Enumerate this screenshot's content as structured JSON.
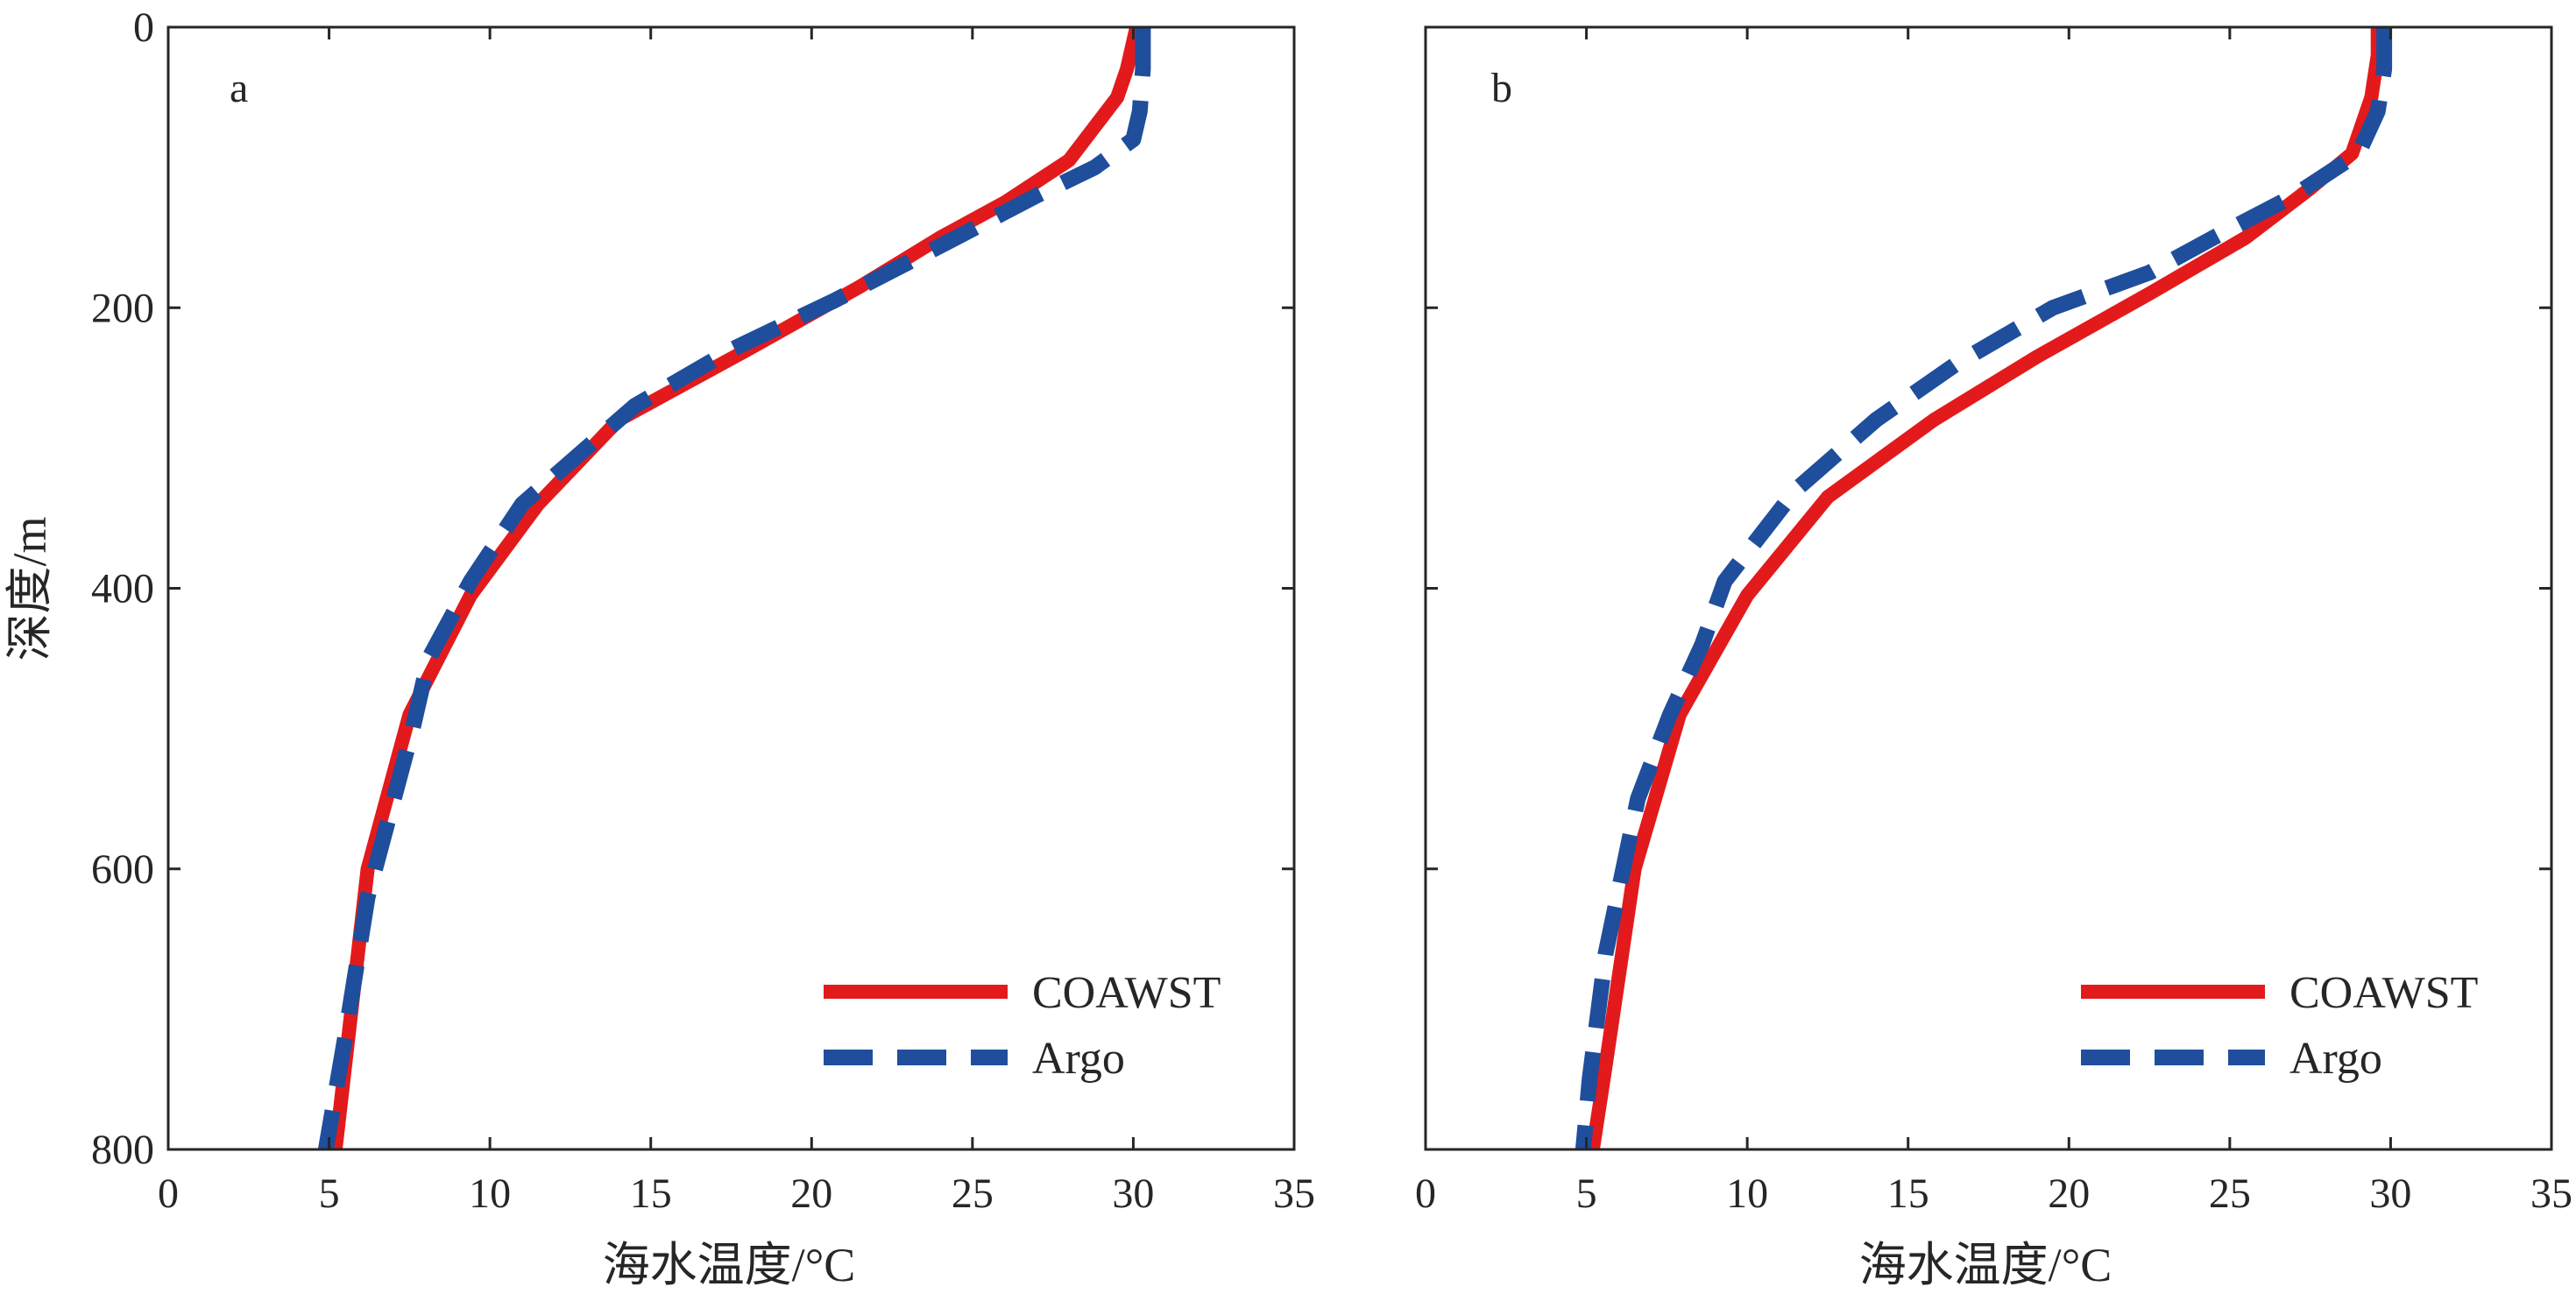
{
  "chart_data": [
    {
      "type": "line",
      "panel_label": "a",
      "xlabel": "海水温度/°C",
      "ylabel": "深度/m",
      "xlim": [
        0,
        35
      ],
      "ylim": [
        800,
        0
      ],
      "y_reversed": true,
      "xticks": [
        0,
        5,
        10,
        15,
        20,
        25,
        30,
        35
      ],
      "yticks": [
        0,
        200,
        400,
        600,
        800
      ],
      "legend_position": "bottom-right",
      "series": [
        {
          "name": "COAWST",
          "color": "#e31a1c",
          "style": "solid",
          "x": [
            30.1,
            29.8,
            29.5,
            28.0,
            26.0,
            24.0,
            21.5,
            18.0,
            14.0,
            11.5,
            9.4,
            7.5,
            6.2,
            5.2
          ],
          "y": [
            0,
            30,
            50,
            95,
            125,
            150,
            185,
            230,
            280,
            340,
            405,
            490,
            600,
            800
          ]
        },
        {
          "name": "Argo",
          "color": "#1f4e9c",
          "style": "dashed",
          "x": [
            30.3,
            30.3,
            30.2,
            30.0,
            28.8,
            27.0,
            24.5,
            20.7,
            17.5,
            14.5,
            11.0,
            9.4,
            8.1,
            7.6,
            6.9,
            6.2,
            5.5,
            4.9
          ],
          "y": [
            0,
            30,
            60,
            80,
            100,
            120,
            150,
            195,
            230,
            270,
            340,
            395,
            450,
            500,
            560,
            620,
            720,
            800
          ]
        }
      ]
    },
    {
      "type": "line",
      "panel_label": "b",
      "xlabel": "海水温度/°C",
      "ylabel": "",
      "xlim": [
        0,
        35
      ],
      "ylim": [
        800,
        0
      ],
      "y_reversed": true,
      "xticks": [
        0,
        5,
        10,
        15,
        20,
        25,
        30,
        35
      ],
      "yticks": [
        0,
        200,
        400,
        600,
        800
      ],
      "legend_position": "bottom-right",
      "series": [
        {
          "name": "COAWST",
          "color": "#e31a1c",
          "style": "solid",
          "x": [
            29.6,
            29.6,
            29.4,
            28.8,
            27.5,
            25.5,
            22.5,
            19.0,
            15.8,
            12.5,
            10.0,
            7.9,
            6.5,
            5.6,
            5.2
          ],
          "y": [
            0,
            20,
            50,
            90,
            115,
            150,
            190,
            235,
            280,
            335,
            405,
            490,
            600,
            740,
            800
          ]
        },
        {
          "name": "Argo",
          "color": "#1f4e9c",
          "style": "dashed",
          "x": [
            29.8,
            29.8,
            29.6,
            29.0,
            27.0,
            24.5,
            22.5,
            19.5,
            16.5,
            14.0,
            11.5,
            9.3,
            8.6,
            7.6,
            6.6,
            5.6,
            5.1,
            4.9
          ],
          "y": [
            0,
            30,
            60,
            90,
            120,
            150,
            175,
            200,
            240,
            280,
            330,
            395,
            440,
            490,
            550,
            660,
            750,
            800
          ]
        }
      ]
    }
  ]
}
